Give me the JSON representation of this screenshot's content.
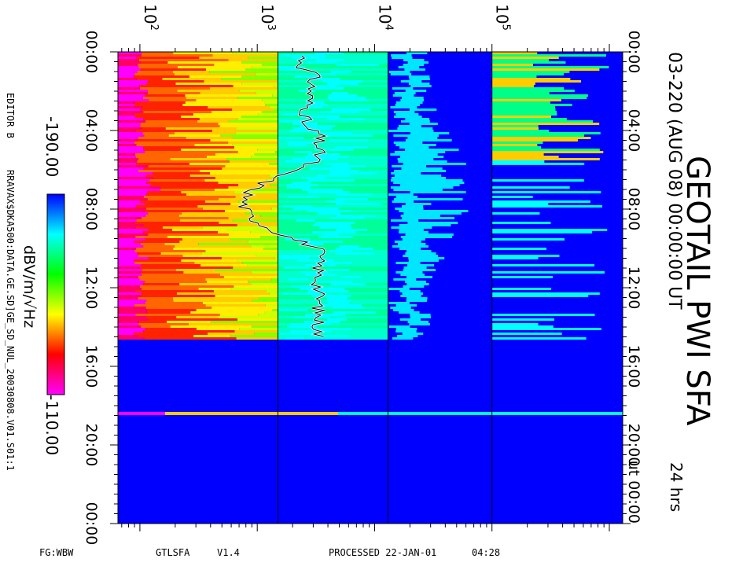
{
  "header": {
    "title": "GEOTAIL PWI SFA",
    "date_line": "03-220 (AUG 08) 00:00:00 UT",
    "duration": "24 hrs"
  },
  "colorbar": {
    "max_label": "-110.00",
    "min_label": "-190.00",
    "unit": "dBV/m/√Hz",
    "colors": [
      "#ff00ff",
      "#ff0000",
      "#ffff00",
      "#00ff00",
      "#00ffff",
      "#0000ff"
    ]
  },
  "left_margin": {
    "editor": "EDITOR B",
    "file": "RRAVAX$DKA500:DATA.GE.SD]GE_SD_NUL_20030808.V01.S01:1"
  },
  "footer": {
    "fg": "FG:WBW",
    "program": "GTLSFA",
    "version": "V1.4",
    "processed": "PROCESSED 22-JAN-01",
    "time": "04:28"
  },
  "chart_data": {
    "type": "heatmap",
    "x_axis": {
      "scale": "log",
      "ticks": [
        {
          "value": 100,
          "base": "10",
          "exp": "2"
        },
        {
          "value": 1000,
          "base": "10",
          "exp": "3"
        },
        {
          "value": 10000,
          "base": "10",
          "exp": "4"
        },
        {
          "value": 100000,
          "base": "10",
          "exp": "5"
        }
      ]
    },
    "y_axis": {
      "range_hours": [
        0,
        24
      ],
      "tick_labels_left": [
        "00:00",
        "04:00",
        "08:00",
        "12:00",
        "16:00",
        "20:00",
        "00:00"
      ],
      "tick_labels_right": [
        "00:00",
        "04:00",
        "08:00",
        "12:00",
        "16:00",
        "20:00",
        "ut 00:00"
      ],
      "label_hours": [
        0,
        4,
        8,
        12,
        16,
        20,
        24
      ]
    },
    "data_gap_hours": [
      [
        14.6,
        18.3
      ],
      [
        18.5,
        24
      ]
    ],
    "data_coverage_hours": [
      0,
      14.6
    ],
    "band_boundaries_hz": [
      1500,
      13000,
      100000
    ]
  }
}
